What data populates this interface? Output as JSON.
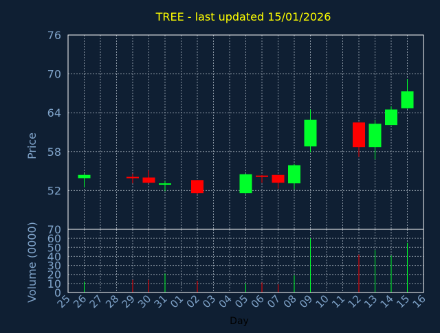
{
  "title": "TREE - last updated 15/01/2026",
  "colors": {
    "background": "#0f1f33",
    "axis": "#ffffff",
    "grid": "#8a96a3",
    "title": "#ffff00",
    "label": "#7fa3c9",
    "tick": "#7fa3c9",
    "up": "#00ff2a",
    "down": "#ff0000"
  },
  "chart_data": [
    {
      "type": "candlestick",
      "title": "TREE - last updated 15/01/2026",
      "xlabel": "",
      "ylabel": "Price",
      "ylim": [
        46,
        76
      ],
      "yticks": [
        52,
        58,
        64,
        70,
        76
      ],
      "x_categories": [
        "25",
        "26",
        "27",
        "28",
        "29",
        "30",
        "31",
        "01",
        "02",
        "03",
        "04",
        "05",
        "06",
        "07",
        "08",
        "09",
        "10",
        "11",
        "12",
        "13",
        "14",
        "15",
        "16"
      ],
      "grid": true,
      "candles": [
        {
          "day": "26",
          "open": 53.9,
          "high": 54.6,
          "low": 52.5,
          "close": 54.4
        },
        {
          "day": "29",
          "open": 54.1,
          "high": 54.6,
          "low": 53.1,
          "close": 54.0
        },
        {
          "day": "30",
          "open": 54.0,
          "high": 55.1,
          "low": 53.1,
          "close": 53.2
        },
        {
          "day": "31",
          "open": 52.9,
          "high": 53.5,
          "low": 51.9,
          "close": 53.1
        },
        {
          "day": "02",
          "open": 53.6,
          "high": 53.6,
          "low": 51.4,
          "close": 51.6
        },
        {
          "day": "05",
          "open": 51.6,
          "high": 54.6,
          "low": 51.5,
          "close": 54.5
        },
        {
          "day": "06",
          "open": 54.3,
          "high": 54.4,
          "low": 53.2,
          "close": 54.2
        },
        {
          "day": "07",
          "open": 54.4,
          "high": 54.4,
          "low": 52.3,
          "close": 53.2
        },
        {
          "day": "08",
          "open": 53.1,
          "high": 56.1,
          "low": 52.2,
          "close": 55.9
        },
        {
          "day": "09",
          "open": 58.8,
          "high": 64.5,
          "low": 57.9,
          "close": 62.9
        },
        {
          "day": "12",
          "open": 62.5,
          "high": 62.5,
          "low": 57.2,
          "close": 58.7
        },
        {
          "day": "13",
          "open": 58.7,
          "high": 62.9,
          "low": 56.8,
          "close": 62.3
        },
        {
          "day": "14",
          "open": 62.1,
          "high": 65.0,
          "low": 62.1,
          "close": 64.5
        },
        {
          "day": "15",
          "open": 64.7,
          "high": 69.2,
          "low": 64.6,
          "close": 67.3
        }
      ]
    },
    {
      "type": "bar",
      "title": "",
      "xlabel": "Day",
      "ylabel": "Volume (0000)",
      "ylim": [
        0,
        70
      ],
      "yticks": [
        0,
        10,
        20,
        30,
        40,
        50,
        60,
        70
      ],
      "categories": [
        "26",
        "29",
        "30",
        "31",
        "02",
        "05",
        "06",
        "07",
        "08",
        "09",
        "12",
        "13",
        "14",
        "15"
      ],
      "values": [
        12,
        14,
        14,
        21,
        13,
        10,
        11,
        9,
        19,
        60,
        42,
        47,
        41,
        55
      ],
      "directions": [
        "up",
        "down",
        "down",
        "up",
        "down",
        "up",
        "down",
        "down",
        "up",
        "up",
        "down",
        "up",
        "up",
        "up"
      ]
    }
  ]
}
